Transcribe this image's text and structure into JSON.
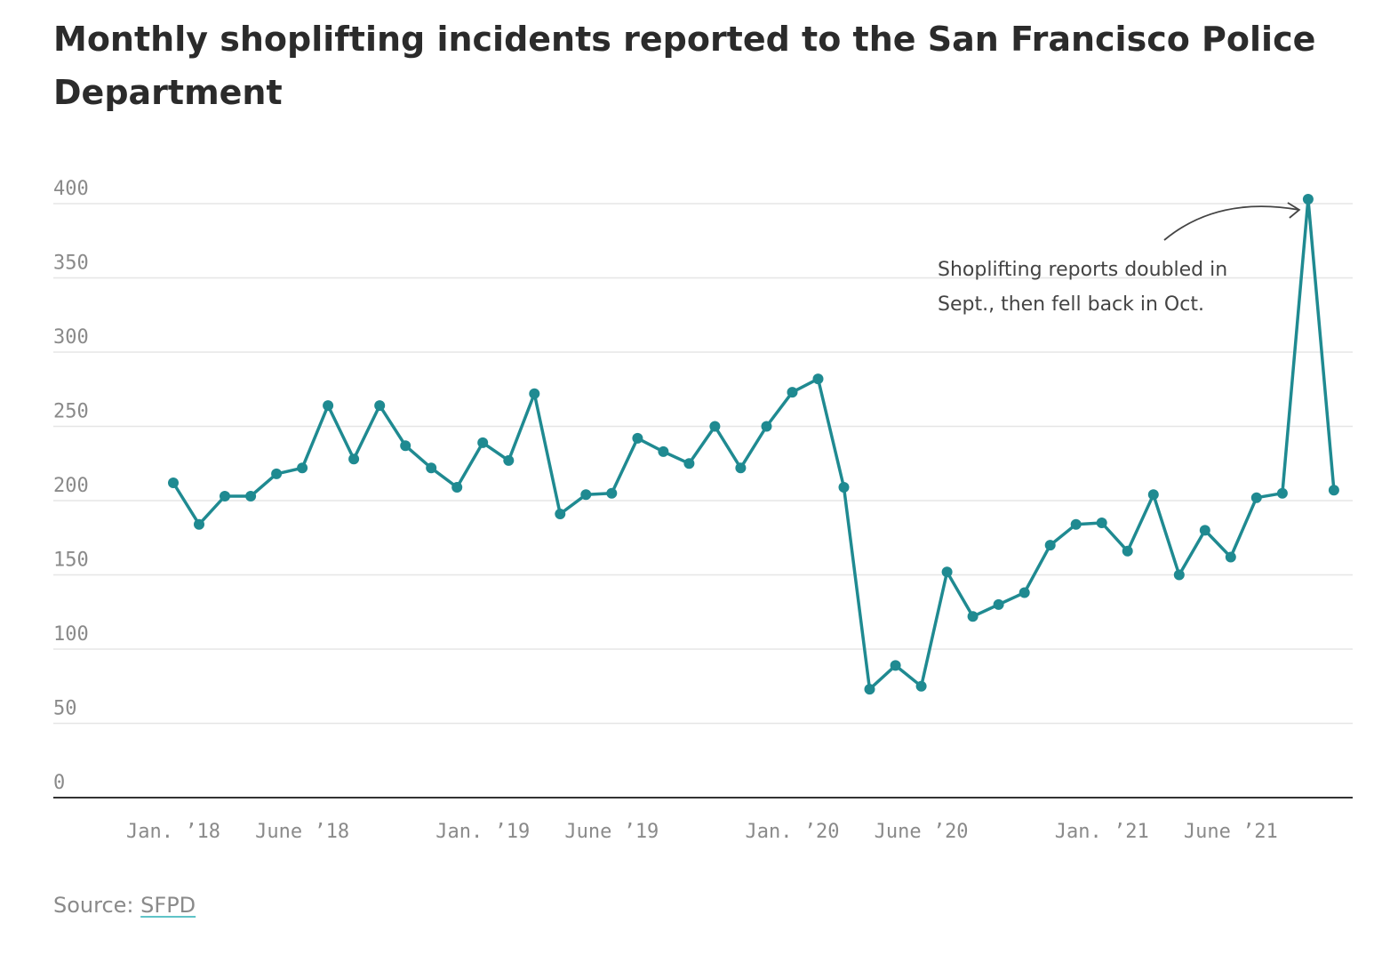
{
  "chart_data": {
    "type": "line",
    "title": "Monthly shoplifting incidents reported to the San Francisco Police Department",
    "xlabel": "",
    "ylabel": "",
    "ylim": [
      0,
      400
    ],
    "yticks": [
      0,
      50,
      100,
      150,
      200,
      250,
      300,
      350,
      400
    ],
    "grid": true,
    "series": [
      {
        "name": "Shoplifting incidents",
        "color": "#1f8a91",
        "values": [
          212,
          184,
          203,
          203,
          218,
          222,
          264,
          228,
          264,
          237,
          222,
          209,
          239,
          227,
          272,
          191,
          204,
          205,
          242,
          233,
          225,
          250,
          222,
          250,
          273,
          282,
          209,
          73,
          89,
          75,
          152,
          122,
          130,
          138,
          170,
          184,
          185,
          166,
          204,
          150,
          180,
          162,
          202,
          205,
          403,
          207
        ]
      }
    ],
    "x_tick_labels": [
      {
        "index": 0,
        "label": "Jan. ’18"
      },
      {
        "index": 5,
        "label": "June ’18"
      },
      {
        "index": 12,
        "label": "Jan. ’19"
      },
      {
        "index": 17,
        "label": "June ’19"
      },
      {
        "index": 24,
        "label": "Jan. ’20"
      },
      {
        "index": 29,
        "label": "June ’20"
      },
      {
        "index": 36,
        "label": "Jan. ’21"
      },
      {
        "index": 41,
        "label": "June ’21"
      }
    ],
    "annotation": {
      "lines": [
        "Shoplifting reports doubled in",
        "Sept., then fell back in Oct."
      ],
      "target_index": 44
    }
  },
  "source": {
    "prefix": "Source: ",
    "link_text": "SFPD"
  },
  "colors": {
    "line": "#1f8a91",
    "grid": "#e6e6e6",
    "axis": "#333333",
    "link_underline": "#5fc3c7"
  }
}
